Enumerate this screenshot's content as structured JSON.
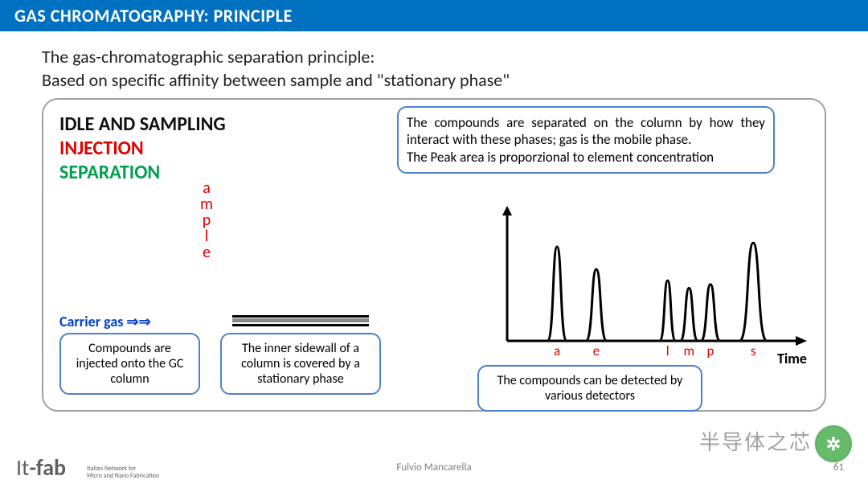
{
  "title": "GAS CHROMATOGRAPHY: PRINCIPLE",
  "intro_line1": "The gas-chromatographic separation principle:",
  "intro_line2": "Based on specific affinity between sample and \"stationary phase\"",
  "phases": {
    "idle": "IDLE  AND SAMPLING",
    "injection": "INJECTION",
    "separation": "SEPARATION"
  },
  "vertical_word": [
    "a",
    "m",
    "p",
    "l",
    "e"
  ],
  "carrier_label": "Carrier gas",
  "callouts": {
    "top_right": "The compounds are separated on the column by how they interact with these phases; gas is the mobile phase.\nThe Peak area is proporzional to element concentration",
    "left": "Compounds are injected onto the GC column",
    "mid": "The inner sidewall of a column is covered by a stationary phase",
    "bottom_right": "The compounds can be detected by various detectors"
  },
  "chart": {
    "type": "line",
    "xlabel": "Time",
    "xlim": [
      0,
      400
    ],
    "ylim": [
      0,
      160
    ],
    "axis_color": "#000000",
    "line_color": "#000000",
    "line_width": 3,
    "background_color": "#ffffff",
    "peaks": [
      {
        "label": "a",
        "x": 70,
        "height": 125,
        "width": 24
      },
      {
        "label": "e",
        "x": 125,
        "height": 95,
        "width": 26
      },
      {
        "label": "l",
        "x": 225,
        "height": 80,
        "width": 20
      },
      {
        "label": "m",
        "x": 255,
        "height": 70,
        "width": 22
      },
      {
        "label": "p",
        "x": 285,
        "height": 75,
        "width": 24
      },
      {
        "label": "s",
        "x": 345,
        "height": 130,
        "width": 34
      }
    ],
    "label_color": "#e00000",
    "label_fontsize": 17
  },
  "colors": {
    "title_bg": "#0070c0",
    "injection": "#e00000",
    "separation": "#00a050",
    "carrier": "#0040d0",
    "callout_border": "#5080d0",
    "frame_border": "#a0a0a0"
  },
  "footer": {
    "logo_main": "It-fab",
    "logo_sub1": "Italian Network for",
    "logo_sub2": "Micro and Nano Fabrication",
    "author": "Fulvio Mancarella",
    "page": "61"
  },
  "watermark": "半导体之芯"
}
